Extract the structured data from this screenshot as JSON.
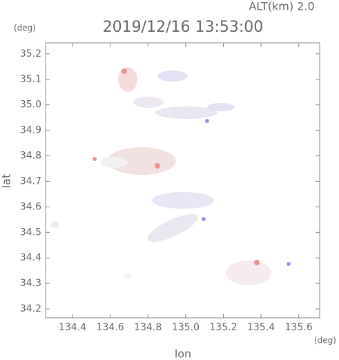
{
  "chart_data": {
    "type": "map",
    "subtitle": "ALT(km) 2.0",
    "title": "2019/12/16 13:53:00",
    "y_unit": "(deg)",
    "x_unit": "(deg)",
    "xlabel": "lon",
    "ylabel": "lat",
    "xlim": [
      134.257,
      135.711
    ],
    "ylim": [
      34.165,
      35.243
    ],
    "xticks": [
      134.4,
      134.6,
      134.8,
      {
        "value": 135,
        "label": "135.0"
      },
      135.2,
      135.4,
      135.6
    ],
    "yticks": [
      34.2,
      34.3,
      34.4,
      34.5,
      34.6,
      34.7,
      34.8,
      34.9,
      {
        "value": 35,
        "label": "35.0"
      },
      35.1,
      35.2
    ]
  }
}
